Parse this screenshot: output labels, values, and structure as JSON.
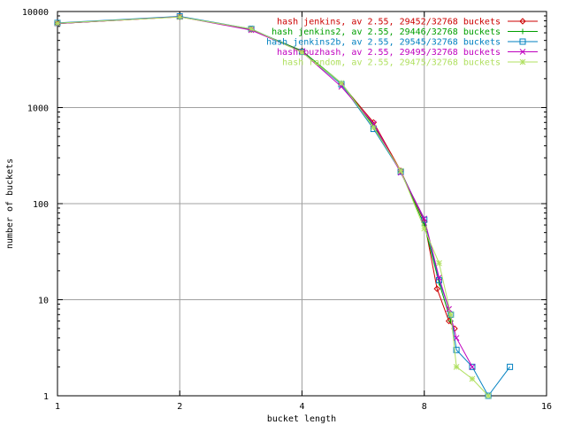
{
  "chart_data": {
    "type": "line",
    "xlabel": "bucket length",
    "ylabel": "number of buckets",
    "x_scale": "log2",
    "y_scale": "log10",
    "xlim": [
      1,
      16
    ],
    "ylim": [
      1,
      10000
    ],
    "x_ticks": [
      1,
      2,
      4,
      8,
      16
    ],
    "x_tick_labels": [
      "1",
      "2",
      "4",
      "8",
      "16"
    ],
    "y_ticks": [
      1,
      10,
      100,
      1000,
      10000
    ],
    "y_tick_labels": [
      "1",
      "10",
      "100",
      "1000",
      "10000"
    ],
    "grid": true,
    "legend_position": "top-right",
    "series": [
      {
        "name": "hash jenkins, av 2.55, 29452/32768 buckets",
        "color": "#cc0000",
        "marker": "diamond",
        "points": [
          [
            1,
            7500
          ],
          [
            2,
            8800
          ],
          [
            3,
            6500
          ],
          [
            4,
            3900
          ],
          [
            5,
            1750
          ],
          [
            6,
            700
          ],
          [
            7,
            220
          ],
          [
            8,
            65
          ],
          [
            8.6,
            13
          ],
          [
            9.2,
            6
          ],
          [
            9.5,
            5
          ]
        ]
      },
      {
        "name": "hash jenkins2, av 2.55, 29446/32768 buckets",
        "color": "#00a000",
        "marker": "plus",
        "points": [
          [
            1,
            7500
          ],
          [
            2,
            8850
          ],
          [
            3,
            6500
          ],
          [
            4,
            3900
          ],
          [
            5,
            1800
          ],
          [
            6,
            650
          ],
          [
            7,
            215
          ],
          [
            8,
            60
          ],
          [
            8.7,
            15
          ],
          [
            9.3,
            6
          ]
        ]
      },
      {
        "name": "hash jenkins2b, av 2.55, 29545/32768 buckets",
        "color": "#0080c0",
        "marker": "square",
        "points": [
          [
            1,
            7600
          ],
          [
            2,
            8900
          ],
          [
            3,
            6600
          ],
          [
            4,
            3800
          ],
          [
            5,
            1750
          ],
          [
            6,
            600
          ],
          [
            7,
            215
          ],
          [
            8,
            68
          ],
          [
            8.7,
            16
          ],
          [
            9.3,
            7
          ],
          [
            9.6,
            3
          ],
          [
            10.5,
            2
          ],
          [
            11.5,
            1
          ],
          [
            13,
            2
          ]
        ]
      },
      {
        "name": "hash buzhash, av 2.55, 29495/32768 buckets",
        "color": "#c000c0",
        "marker": "cross",
        "points": [
          [
            1,
            7500
          ],
          [
            2,
            8800
          ],
          [
            3,
            6400
          ],
          [
            4,
            3800
          ],
          [
            5,
            1650
          ],
          [
            6,
            680
          ],
          [
            7,
            210
          ],
          [
            8,
            70
          ],
          [
            8.7,
            17
          ],
          [
            9.2,
            8
          ],
          [
            9.6,
            4
          ],
          [
            10.5,
            2
          ]
        ]
      },
      {
        "name": "hash random, av 2.55, 29475/32768 buckets",
        "color": "#b0e060",
        "marker": "star",
        "points": [
          [
            1,
            7550
          ],
          [
            2,
            8750
          ],
          [
            3,
            6600
          ],
          [
            4,
            3750
          ],
          [
            5,
            1800
          ],
          [
            6,
            620
          ],
          [
            7,
            220
          ],
          [
            8,
            55
          ],
          [
            8.7,
            24
          ],
          [
            9.3,
            7
          ],
          [
            9.6,
            2
          ],
          [
            10.5,
            1.5
          ],
          [
            11.5,
            1
          ]
        ]
      }
    ]
  }
}
